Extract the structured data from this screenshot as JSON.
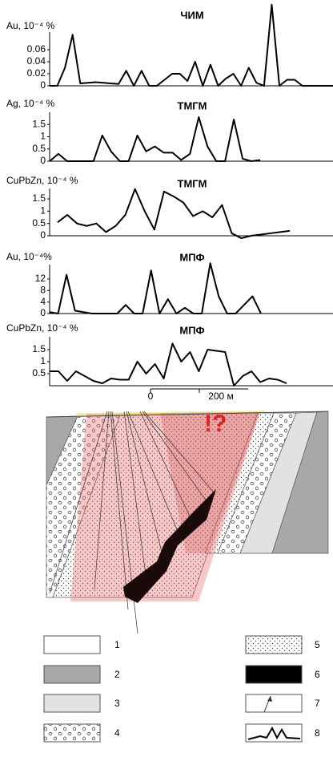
{
  "chart_data": [
    {
      "type": "line",
      "title": "ЧИМ",
      "y_label": "Au, 10⁻⁴ %",
      "color": "#000000",
      "values": [
        0,
        0,
        0.03,
        0.085,
        0.004,
        0.005,
        0.006,
        0.005,
        0.004,
        0.003,
        0.025,
        0,
        0.025,
        0,
        0,
        0.01,
        0.02,
        0.02,
        0.008,
        0.04,
        0,
        0.035,
        0,
        0.012,
        0.02,
        0,
        0.03,
        0.005,
        0,
        0.135,
        0,
        0.01,
        0.01,
        0,
        0,
        0,
        0,
        0
      ],
      "ylim": [
        0,
        0.14
      ],
      "yticks": [
        0,
        0.02,
        0.04,
        0.06
      ]
    },
    {
      "type": "line",
      "title": "ТМГМ",
      "y_label": "Ag, 10⁻⁴ %",
      "color": "#000000",
      "values": [
        0,
        0.3,
        0,
        0,
        0,
        0,
        1.05,
        0.4,
        0,
        0,
        1.05,
        0.4,
        0.6,
        0.35,
        0.35,
        0.05,
        0.3,
        1.8,
        0.6,
        0,
        0,
        1.7,
        0.1,
        0,
        0.05
      ],
      "ylim": [
        0,
        1.9
      ],
      "yticks": [
        0,
        0.5,
        1,
        1.5
      ]
    },
    {
      "type": "line",
      "title": "ТМГМ",
      "y_label": "CuPbZn, 10⁻⁴ %",
      "color": "#000000",
      "values": [
        0.55,
        0.85,
        0.5,
        0.4,
        0.5,
        0.15,
        0.4,
        0.85,
        1.9,
        1.0,
        0.25,
        1.8,
        1.6,
        1.35,
        0.8,
        1.0,
        0.75,
        1.25,
        0.1,
        -0.1,
        0,
        0.05,
        0.1,
        0.15,
        0.2
      ],
      "ylim": [
        -0.3,
        2.0
      ],
      "yticks": [
        0,
        0.5,
        1,
        1.5
      ]
    },
    {
      "type": "line",
      "title": "МПФ",
      "y_label": "Au, 10⁻⁴%",
      "color": "#000000",
      "values": [
        0.5,
        0,
        13.5,
        1,
        0.5,
        0,
        0,
        0,
        0,
        3,
        0,
        0,
        15,
        0,
        5,
        0,
        2,
        0,
        0,
        17.5,
        6,
        0,
        0,
        3,
        6,
        0
      ],
      "ylim": [
        0,
        18
      ],
      "yticks": [
        0,
        4,
        8,
        12
      ]
    },
    {
      "type": "line",
      "title": "МПФ",
      "y_label": "CuPbZn, 10⁻⁴ %",
      "color": "#000000",
      "values": [
        0.6,
        0.6,
        0.2,
        0.6,
        0.4,
        0.2,
        0.1,
        0.3,
        0.25,
        0.25,
        1.0,
        0.5,
        0.9,
        0.3,
        1.75,
        1.0,
        1.4,
        0.6,
        1.5,
        1.45,
        1.4,
        0,
        0.4,
        0.6,
        0.15,
        0.3,
        0.25,
        0.1
      ],
      "ylim": [
        0,
        1.8
      ],
      "yticks": [
        0.5,
        1,
        1.5
      ]
    }
  ],
  "scale_bar": [
    "0",
    "200 м"
  ],
  "annotation": "!?",
  "legend": [
    "1",
    "2",
    "3",
    "4",
    "5",
    "6",
    "7",
    "8"
  ]
}
